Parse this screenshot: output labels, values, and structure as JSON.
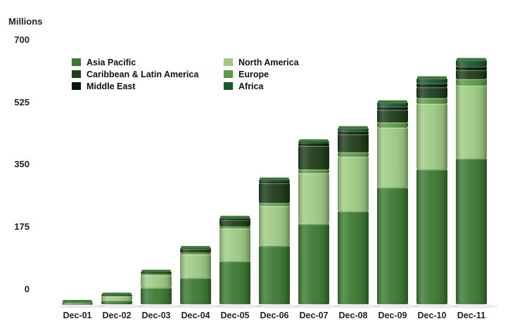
{
  "chart_data": {
    "type": "bar",
    "stacked": true,
    "ylabel": "Millions",
    "ylim": [
      0,
      700
    ],
    "yticks": [
      0,
      175,
      350,
      525,
      700
    ],
    "categories": [
      "Dec-01",
      "Dec-02",
      "Dec-03",
      "Dec-04",
      "Dec-05",
      "Dec-06",
      "Dec-07",
      "Dec-08",
      "Dec-09",
      "Dec-10",
      "Dec-11"
    ],
    "legend_position": "top-left",
    "grid": false,
    "series": [
      {
        "name": "Asia Pacific",
        "color": "#3d7a33",
        "values": [
          2,
          10,
          45,
          72,
          118,
          160,
          220,
          255,
          320,
          370,
          400
        ]
      },
      {
        "name": "North America",
        "color": "#9fcb84",
        "values": [
          4,
          12,
          35,
          65,
          90,
          110,
          140,
          150,
          165,
          180,
          200
        ]
      },
      {
        "name": "Europe",
        "color": "#5d9a46",
        "values": [
          0,
          2,
          4,
          5,
          6,
          8,
          10,
          12,
          14,
          16,
          18
        ]
      },
      {
        "name": "Caribbean & Latin America",
        "color": "#1f3d1a",
        "values": [
          0,
          2,
          5,
          10,
          18,
          55,
          65,
          50,
          35,
          30,
          25
        ]
      },
      {
        "name": "Middle East",
        "color": "#0a1a0a",
        "values": [
          0,
          0,
          0,
          0,
          2,
          4,
          6,
          8,
          8,
          10,
          10
        ]
      },
      {
        "name": "Africa",
        "color": "#165a2a",
        "values": [
          0,
          0,
          0,
          2,
          3,
          5,
          6,
          8,
          12,
          14,
          17
        ]
      }
    ]
  }
}
